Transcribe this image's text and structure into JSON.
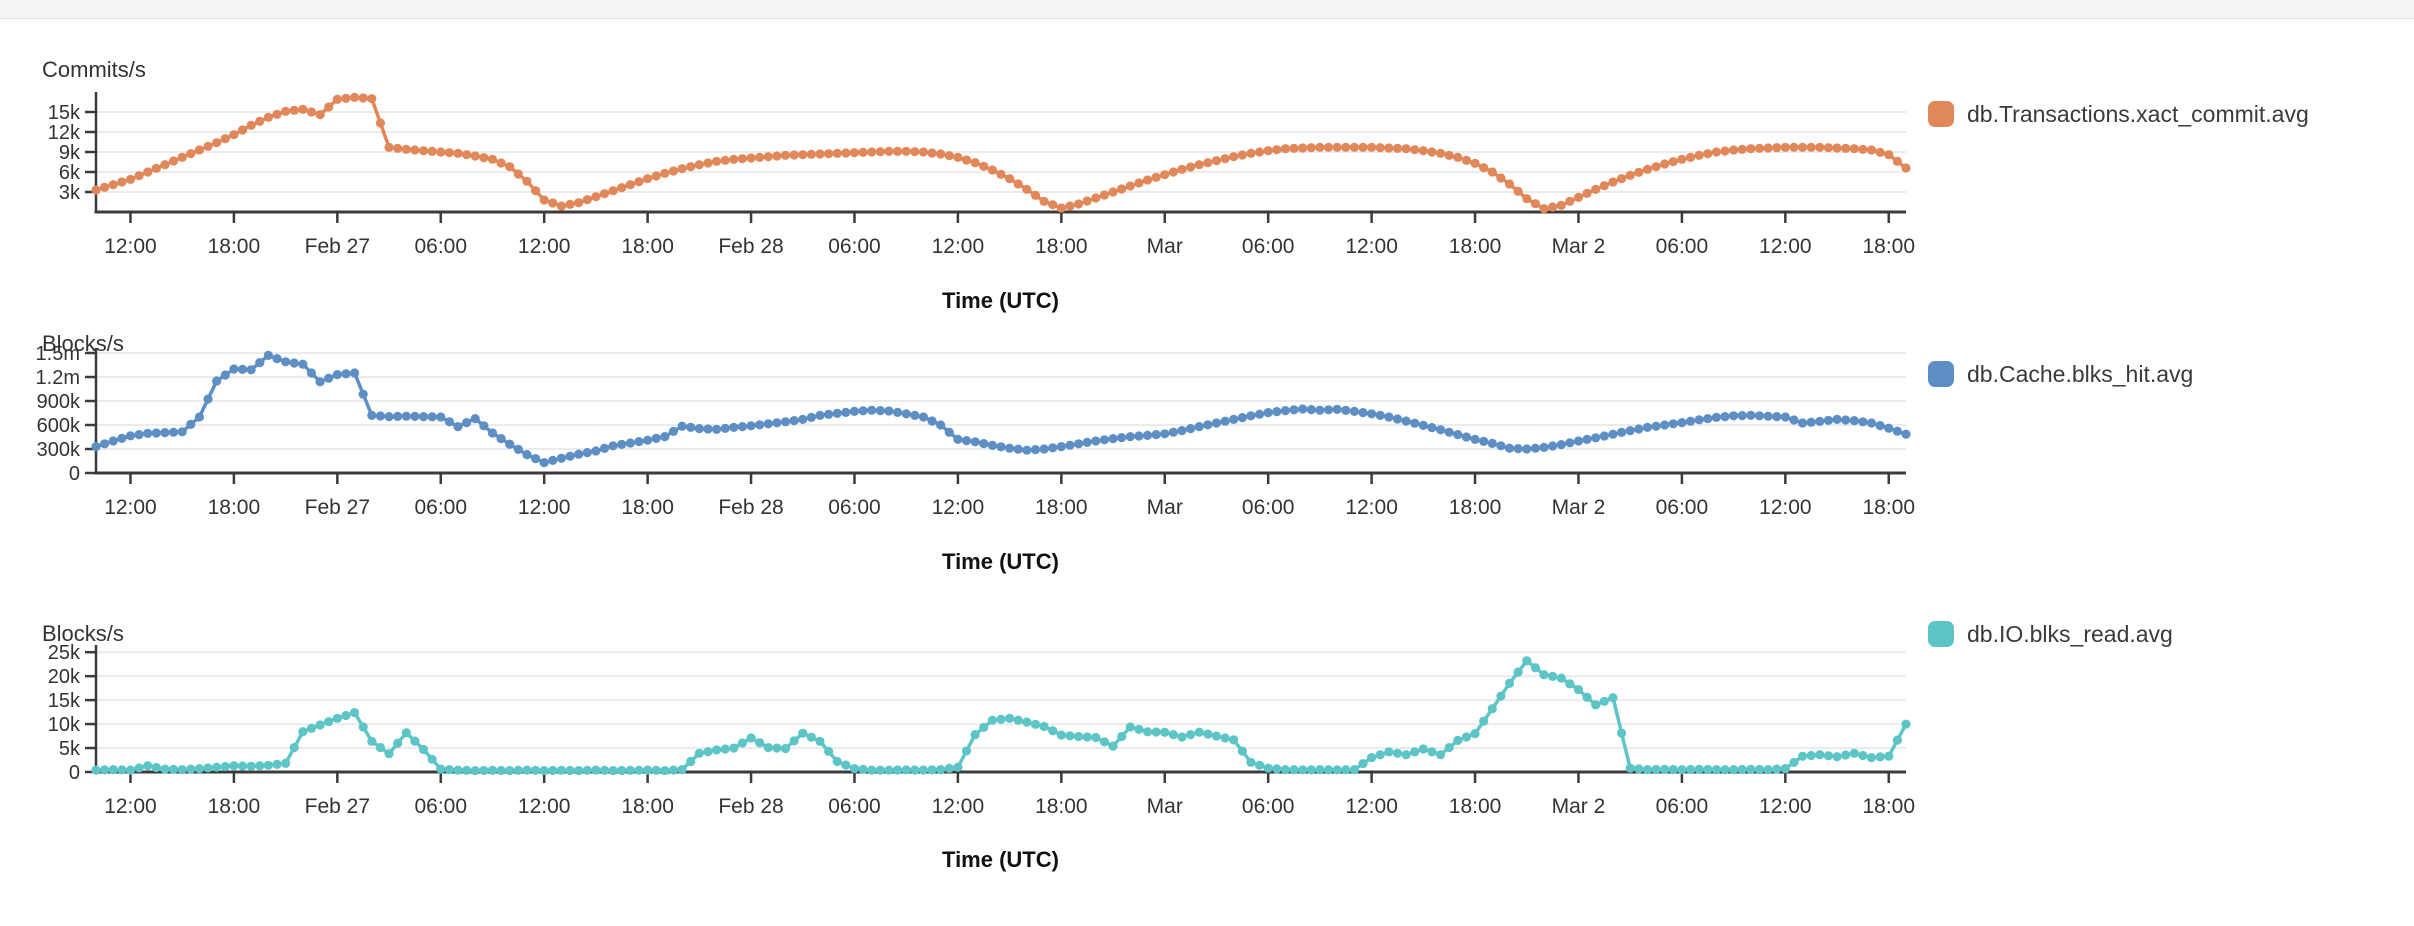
{
  "page": {
    "top_bar_color": "#f4f4f4",
    "background": "#ffffff",
    "axis_color": "#3b3b3b",
    "grid_color": "#ebebeb",
    "text_color": "#333333"
  },
  "chart_data": [
    {
      "type": "line",
      "title": "Commits/s",
      "xlabel": "Time (UTC)",
      "legend_position": "right",
      "grid": "horizontal",
      "markers": true,
      "x_start": "Feb 26 10:00 UTC",
      "x_step_hours": 1,
      "ylim": [
        0,
        18000
      ],
      "yticks": [
        {
          "value": 3000,
          "label": "3k"
        },
        {
          "value": 6000,
          "label": "6k"
        },
        {
          "value": 9000,
          "label": "9k"
        },
        {
          "value": 12000,
          "label": "12k"
        },
        {
          "value": 15000,
          "label": "15k"
        }
      ],
      "xticks": [
        {
          "hour": 2,
          "label": "12:00"
        },
        {
          "hour": 8,
          "label": "18:00"
        },
        {
          "hour": 14,
          "label": "Feb 27"
        },
        {
          "hour": 20,
          "label": "06:00"
        },
        {
          "hour": 26,
          "label": "12:00"
        },
        {
          "hour": 32,
          "label": "18:00"
        },
        {
          "hour": 38,
          "label": "Feb 28"
        },
        {
          "hour": 44,
          "label": "06:00"
        },
        {
          "hour": 50,
          "label": "12:00"
        },
        {
          "hour": 56,
          "label": "18:00"
        },
        {
          "hour": 62,
          "label": "Mar"
        },
        {
          "hour": 68,
          "label": "06:00"
        },
        {
          "hour": 74,
          "label": "12:00"
        },
        {
          "hour": 80,
          "label": "18:00"
        },
        {
          "hour": 86,
          "label": "Mar 2"
        },
        {
          "hour": 92,
          "label": "06:00"
        },
        {
          "hour": 98,
          "label": "12:00"
        },
        {
          "hour": 104,
          "label": "18:00"
        }
      ],
      "series": [
        {
          "name": "db.Transactions.xact_commit.avg",
          "color": "#E0885A",
          "values": [
            3300,
            4100,
            4900,
            6000,
            7100,
            8200,
            9300,
            10400,
            11600,
            13000,
            14200,
            15100,
            15400,
            14600,
            16900,
            17200,
            17000,
            9700,
            9400,
            9200,
            9000,
            8800,
            8400,
            7900,
            6800,
            4600,
            1800,
            900,
            1400,
            2300,
            3200,
            4100,
            5000,
            5800,
            6500,
            7100,
            7600,
            7900,
            8100,
            8300,
            8500,
            8600,
            8700,
            8800,
            8900,
            9000,
            9100,
            9100,
            9000,
            8700,
            8200,
            7400,
            6300,
            5000,
            3400,
            1600,
            600,
            1200,
            2100,
            3000,
            3900,
            4800,
            5600,
            6400,
            7100,
            7700,
            8300,
            8800,
            9200,
            9500,
            9600,
            9700,
            9700,
            9700,
            9700,
            9600,
            9500,
            9200,
            8800,
            8200,
            7300,
            6000,
            4200,
            2000,
            500,
            1000,
            2200,
            3400,
            4500,
            5500,
            6400,
            7200,
            7900,
            8500,
            9000,
            9300,
            9500,
            9600,
            9700,
            9700,
            9700,
            9600,
            9500,
            9300,
            8600,
            6600
          ]
        }
      ]
    },
    {
      "type": "line",
      "title": "Blocks/s",
      "xlabel": "Time (UTC)",
      "legend_position": "right",
      "grid": "horizontal",
      "markers": true,
      "x_start": "Feb 26 10:00 UTC",
      "x_step_hours": 1,
      "ylim": [
        0,
        1562500
      ],
      "yticks": [
        {
          "value": 0,
          "label": "0"
        },
        {
          "value": 300000,
          "label": "300k"
        },
        {
          "value": 600000,
          "label": "600k"
        },
        {
          "value": 900000,
          "label": "900k"
        },
        {
          "value": 1200000,
          "label": "1.2m"
        },
        {
          "value": 1500000,
          "label": "1.5m"
        }
      ],
      "xticks": [
        {
          "hour": 2,
          "label": "12:00"
        },
        {
          "hour": 8,
          "label": "18:00"
        },
        {
          "hour": 14,
          "label": "Feb 27"
        },
        {
          "hour": 20,
          "label": "06:00"
        },
        {
          "hour": 26,
          "label": "12:00"
        },
        {
          "hour": 32,
          "label": "18:00"
        },
        {
          "hour": 38,
          "label": "Feb 28"
        },
        {
          "hour": 44,
          "label": "06:00"
        },
        {
          "hour": 50,
          "label": "12:00"
        },
        {
          "hour": 56,
          "label": "18:00"
        },
        {
          "hour": 62,
          "label": "Mar"
        },
        {
          "hour": 68,
          "label": "06:00"
        },
        {
          "hour": 74,
          "label": "12:00"
        },
        {
          "hour": 80,
          "label": "18:00"
        },
        {
          "hour": 86,
          "label": "Mar 2"
        },
        {
          "hour": 92,
          "label": "06:00"
        },
        {
          "hour": 98,
          "label": "12:00"
        },
        {
          "hour": 104,
          "label": "18:00"
        }
      ],
      "series": [
        {
          "name": "db.Cache.blks_hit.avg",
          "color": "#5E8FC4",
          "values": [
            330000,
            400000,
            465000,
            495000,
            505000,
            515000,
            700000,
            1150000,
            1300000,
            1290000,
            1470000,
            1390000,
            1360000,
            1140000,
            1230000,
            1250000,
            720000,
            705000,
            710000,
            705000,
            700000,
            580000,
            680000,
            500000,
            360000,
            230000,
            130000,
            185000,
            235000,
            275000,
            340000,
            375000,
            410000,
            455000,
            585000,
            555000,
            545000,
            570000,
            590000,
            615000,
            640000,
            670000,
            720000,
            745000,
            770000,
            785000,
            775000,
            740000,
            700000,
            600000,
            420000,
            390000,
            345000,
            310000,
            285000,
            300000,
            330000,
            365000,
            400000,
            430000,
            455000,
            470000,
            490000,
            530000,
            580000,
            625000,
            670000,
            715000,
            755000,
            780000,
            800000,
            785000,
            795000,
            770000,
            740000,
            700000,
            650000,
            595000,
            540000,
            480000,
            420000,
            370000,
            310000,
            300000,
            320000,
            355000,
            400000,
            440000,
            485000,
            530000,
            570000,
            600000,
            630000,
            665000,
            695000,
            715000,
            720000,
            710000,
            700000,
            625000,
            645000,
            670000,
            655000,
            625000,
            560000,
            485000
          ]
        }
      ]
    },
    {
      "type": "line",
      "title": "Blocks/s",
      "xlabel": "Time (UTC)",
      "legend_position": "right",
      "grid": "horizontal",
      "markers": true,
      "x_start": "Feb 26 10:00 UTC",
      "x_step_hours": 1,
      "ylim": [
        0,
        26500
      ],
      "yticks": [
        {
          "value": 0,
          "label": "0"
        },
        {
          "value": 5000,
          "label": "5k"
        },
        {
          "value": 10000,
          "label": "10k"
        },
        {
          "value": 15000,
          "label": "15k"
        },
        {
          "value": 20000,
          "label": "20k"
        },
        {
          "value": 25000,
          "label": "25k"
        }
      ],
      "xticks": [
        {
          "hour": 2,
          "label": "12:00"
        },
        {
          "hour": 8,
          "label": "18:00"
        },
        {
          "hour": 14,
          "label": "Feb 27"
        },
        {
          "hour": 20,
          "label": "06:00"
        },
        {
          "hour": 26,
          "label": "12:00"
        },
        {
          "hour": 32,
          "label": "18:00"
        },
        {
          "hour": 38,
          "label": "Feb 28"
        },
        {
          "hour": 44,
          "label": "06:00"
        },
        {
          "hour": 50,
          "label": "12:00"
        },
        {
          "hour": 56,
          "label": "18:00"
        },
        {
          "hour": 62,
          "label": "Mar"
        },
        {
          "hour": 68,
          "label": "06:00"
        },
        {
          "hour": 74,
          "label": "12:00"
        },
        {
          "hour": 80,
          "label": "18:00"
        },
        {
          "hour": 86,
          "label": "Mar 2"
        },
        {
          "hour": 92,
          "label": "06:00"
        },
        {
          "hour": 98,
          "label": "12:00"
        },
        {
          "hour": 104,
          "label": "18:00"
        }
      ],
      "series": [
        {
          "name": "db.IO.blks_read.avg",
          "color": "#5EC5C6",
          "values": [
            400,
            500,
            400,
            1300,
            600,
            500,
            700,
            1000,
            1300,
            1200,
            1400,
            1800,
            8400,
            9800,
            11200,
            12400,
            6400,
            3800,
            8200,
            4700,
            600,
            400,
            300,
            350,
            300,
            400,
            300,
            350,
            300,
            400,
            300,
            350,
            400,
            300,
            500,
            3900,
            4600,
            5000,
            7100,
            5100,
            4900,
            8100,
            6400,
            2200,
            700,
            400,
            400,
            450,
            400,
            500,
            1000,
            7800,
            10800,
            11200,
            10400,
            9500,
            7700,
            7400,
            7200,
            5400,
            9400,
            8400,
            8300,
            7300,
            8300,
            7500,
            6700,
            2000,
            800,
            500,
            450,
            500,
            450,
            500,
            3000,
            4200,
            3600,
            4800,
            3600,
            6600,
            8000,
            13200,
            18500,
            23200,
            20300,
            19600,
            17200,
            14000,
            15500,
            800,
            500,
            550,
            500,
            550,
            500,
            500,
            550,
            500,
            700,
            3300,
            3600,
            3200,
            3900,
            3000,
            3300,
            10000
          ]
        }
      ]
    }
  ]
}
